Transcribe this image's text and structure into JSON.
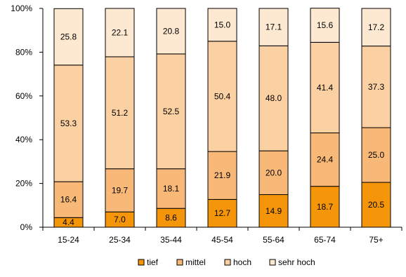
{
  "chart_data": {
    "type": "bar",
    "stacked": true,
    "categories": [
      "15-24",
      "25-34",
      "35-44",
      "45-54",
      "55-64",
      "65-74",
      "75+"
    ],
    "series": [
      {
        "name": "tief",
        "color": "#f5960a",
        "values": [
          4.4,
          7.0,
          8.6,
          12.7,
          14.9,
          18.7,
          20.5
        ]
      },
      {
        "name": "mittel",
        "color": "#f8b978",
        "values": [
          16.4,
          19.7,
          18.1,
          21.9,
          20.0,
          24.4,
          25.0
        ]
      },
      {
        "name": "hoch",
        "color": "#fbd0a2",
        "values": [
          53.3,
          51.2,
          52.5,
          50.4,
          48.0,
          41.4,
          37.3
        ]
      },
      {
        "name": "sehr hoch",
        "color": "#fde8d1",
        "values": [
          25.8,
          22.1,
          20.8,
          15.0,
          17.1,
          15.6,
          17.2
        ]
      }
    ],
    "ylim": [
      0,
      100
    ],
    "yticks": [
      "0%",
      "20%",
      "40%",
      "60%",
      "80%",
      "100%"
    ],
    "grid": false,
    "legend": "bottom",
    "title": "",
    "xlabel": "",
    "ylabel": ""
  }
}
